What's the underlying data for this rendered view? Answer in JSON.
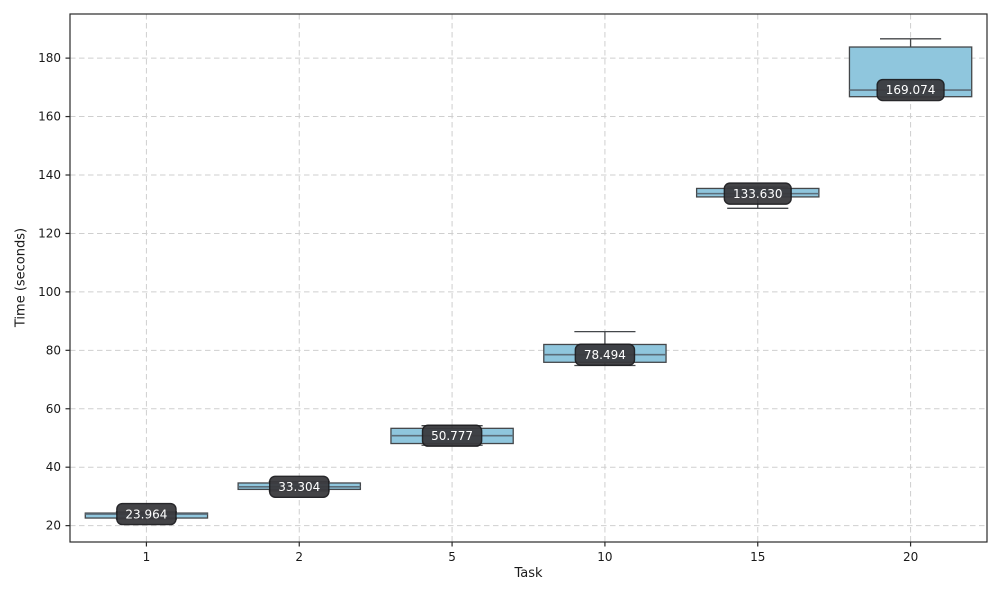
{
  "chart_data": {
    "type": "box",
    "title": "",
    "xlabel": "Task",
    "ylabel": "Time (seconds)",
    "categories": [
      "1",
      "2",
      "5",
      "10",
      "15",
      "20"
    ],
    "yticks": [
      20,
      40,
      60,
      80,
      100,
      120,
      140,
      160,
      180
    ],
    "ylim": [
      14.4,
      195.1
    ],
    "grid": true,
    "grid_style": "dashed",
    "legend": "none",
    "box_width": 0.8,
    "boxes": [
      {
        "category": "1",
        "whislo": 22.3,
        "q1": 22.6,
        "med": 23.964,
        "q3": 24.3,
        "whishi": 24.7,
        "label": "23.964"
      },
      {
        "category": "2",
        "whislo": 31.9,
        "q1": 32.4,
        "med": 33.304,
        "q3": 34.6,
        "whishi": 35.1,
        "label": "33.304"
      },
      {
        "category": "5",
        "whislo": 47.5,
        "q1": 48.1,
        "med": 50.777,
        "q3": 53.3,
        "whishi": 54.2,
        "label": "50.777"
      },
      {
        "category": "10",
        "whislo": 74.8,
        "q1": 75.9,
        "med": 78.494,
        "q3": 82.0,
        "whishi": 86.4,
        "label": "78.494"
      },
      {
        "category": "15",
        "whislo": 128.6,
        "q1": 132.5,
        "med": 133.63,
        "q3": 135.4,
        "whishi": 135.9,
        "label": "133.630"
      },
      {
        "category": "20",
        "whislo": 166.4,
        "q1": 166.8,
        "med": 169.074,
        "q3": 183.8,
        "whishi": 186.6,
        "label": "169.074"
      }
    ]
  },
  "style": {
    "box_fill": "#8fc6dd",
    "box_edge": "#44474a",
    "median_color": "#5b6d79",
    "whisker_color": "#44474a",
    "grid_color": "#cfcfcf",
    "frame_color": "#2a2a2a",
    "tick_text_color": "#1a1a1a",
    "label_chip_bg": "#3a3a3e",
    "label_chip_border": "#1c1c1f",
    "label_chip_text": "#ffffff"
  }
}
